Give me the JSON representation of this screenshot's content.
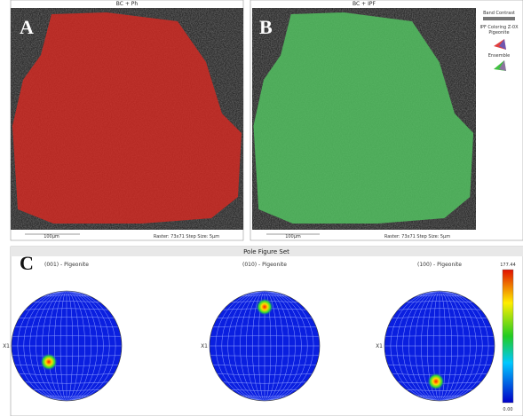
{
  "panels": {
    "a": {
      "title": "BC + Ph",
      "letter": "A",
      "scale_bar": "100μm",
      "footer": "Raster: 73x71  Step Size: 5μm"
    },
    "b": {
      "title": "BC + IPF",
      "letter": "B",
      "scale_bar": "100μm",
      "footer": "Raster: 73x71  Step Size: 5μm",
      "legend": [
        "Band Contrast",
        "IPF Coloring Z-0X",
        "Pigeonite",
        "Ensemble"
      ]
    }
  },
  "pole_figures": {
    "title": "Pole Figure Set",
    "letter": "C",
    "figures": [
      {
        "label": "(001) - Pigeonite",
        "axis": "X1"
      },
      {
        "label": "(010) - Pigeonite",
        "axis": "X1"
      },
      {
        "label": "(100) - Pigeonite",
        "axis": "X1"
      }
    ],
    "colorbar": {
      "max": "177.44",
      "min": "0.00"
    }
  }
}
